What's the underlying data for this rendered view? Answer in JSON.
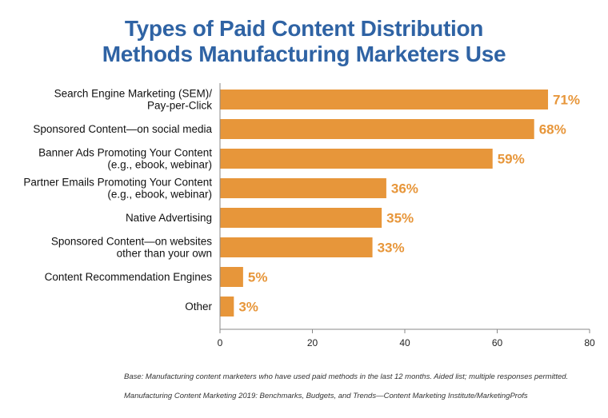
{
  "chart_data": {
    "type": "bar",
    "orientation": "horizontal",
    "title_lines": [
      "Types of Paid Content Distribution",
      "Methods Manufacturing Marketers Use"
    ],
    "categories": [
      [
        "Search Engine Marketing (SEM)/",
        "Pay-per-Click"
      ],
      [
        "Sponsored Content—on social media"
      ],
      [
        "Banner Ads Promoting Your Content",
        "(e.g., ebook, webinar)"
      ],
      [
        "Partner Emails Promoting Your Content",
        "(e.g., ebook, webinar)"
      ],
      [
        "Native Advertising"
      ],
      [
        "Sponsored Content—on websites",
        "other than your own"
      ],
      [
        "Content Recommendation Engines"
      ],
      [
        "Other"
      ]
    ],
    "values": [
      71,
      68,
      59,
      36,
      35,
      33,
      5,
      3
    ],
    "value_labels": [
      "71%",
      "68%",
      "59%",
      "36%",
      "35%",
      "33%",
      "5%",
      "3%"
    ],
    "xlim": [
      0,
      80
    ],
    "x_ticks": [
      0,
      20,
      40,
      60,
      80
    ],
    "grid": false,
    "bar_color": "#e7963a",
    "value_label_color": "#e7963a",
    "title_color": "#2f63a4"
  },
  "footnotes": {
    "base": "Base: Manufacturing content marketers who have used paid methods in the last 12 months. Aided list; multiple responses permitted.",
    "source": "Manufacturing Content Marketing 2019: Benchmarks, Budgets, and Trends—Content Marketing Institute/MarketingProfs"
  }
}
